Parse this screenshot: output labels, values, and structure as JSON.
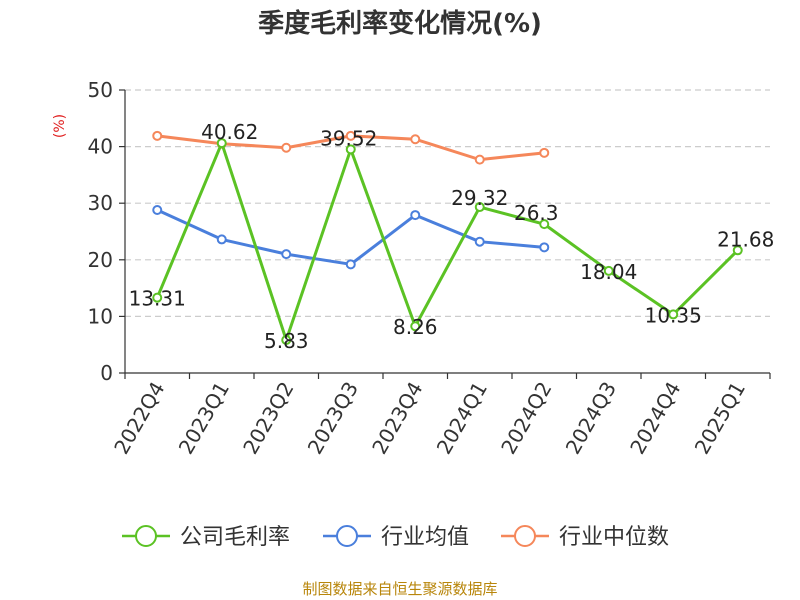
{
  "chart_data": {
    "type": "line",
    "title": "季度毛利率变化情况(%)",
    "ylabel": "(%)",
    "ylim": [
      0,
      50
    ],
    "yticks": [
      "0",
      "10",
      "20",
      "30",
      "40",
      "50"
    ],
    "categories": [
      "2022Q4",
      "2023Q1",
      "2023Q2",
      "2023Q3",
      "2023Q4",
      "2024Q1",
      "2024Q2",
      "2024Q3",
      "2024Q4",
      "2025Q1"
    ],
    "series": [
      {
        "name": "公司毛利率",
        "color": "#5bc224",
        "values": [
          13.31,
          40.62,
          5.83,
          39.52,
          8.26,
          29.32,
          26.3,
          18.04,
          10.35,
          21.68
        ],
        "labels": [
          "13.31",
          "40.62",
          "5.83",
          "39.52",
          "8.26",
          "29.32",
          "26.3",
          "18.04",
          "10.35",
          "21.68"
        ]
      },
      {
        "name": "行业均值",
        "color": "#4a7fdc",
        "values": [
          28.8,
          23.6,
          21.0,
          19.2,
          27.9,
          23.2,
          22.2,
          null,
          null,
          null
        ]
      },
      {
        "name": "行业中位数",
        "color": "#f5875a",
        "values": [
          41.9,
          40.5,
          39.8,
          41.9,
          41.3,
          37.7,
          38.9,
          null,
          null,
          null
        ]
      }
    ],
    "grid": true,
    "legend_position": "bottom"
  },
  "source": "制图数据来自恒生聚源数据库"
}
